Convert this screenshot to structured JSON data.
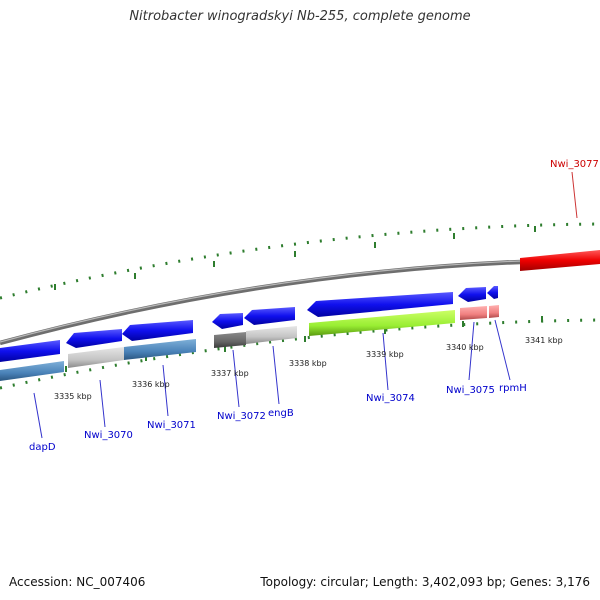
{
  "title": "Nitrobacter winogradskyi Nb-255, complete genome",
  "footer": {
    "accession": "Accession: NC_007406",
    "summary": "Topology: circular; Length: 3,402,093 bp; Genes: 3,176"
  },
  "colors": {
    "backbone": "#8a8a8a",
    "tick": "#2e7d2e",
    "label_blue": "#0000cc",
    "label_red": "#cc0000",
    "leader": "#3333cc",
    "leader_red": "#cc3333"
  },
  "ticks": [
    {
      "label": "3335 kbp"
    },
    {
      "label": "3336 kbp"
    },
    {
      "label": "3337 kbp"
    },
    {
      "label": "3338 kbp"
    },
    {
      "label": "3339 kbp"
    },
    {
      "label": "3340 kbp"
    },
    {
      "label": "3341 kbp"
    }
  ],
  "genes": [
    {
      "label": "dapD",
      "color": "blue"
    },
    {
      "label": "Nwi_3070",
      "color": "blue"
    },
    {
      "label": "Nwi_3071",
      "color": "blue"
    },
    {
      "label": "Nwi_3072",
      "color": "blue"
    },
    {
      "label": "engB",
      "color": "blue"
    },
    {
      "label": "Nwi_3074",
      "color": "blue"
    },
    {
      "label": "Nwi_3075",
      "color": "blue"
    },
    {
      "label": "rpmH",
      "color": "blue"
    },
    {
      "label": "Nwi_3077",
      "color": "red"
    }
  ]
}
